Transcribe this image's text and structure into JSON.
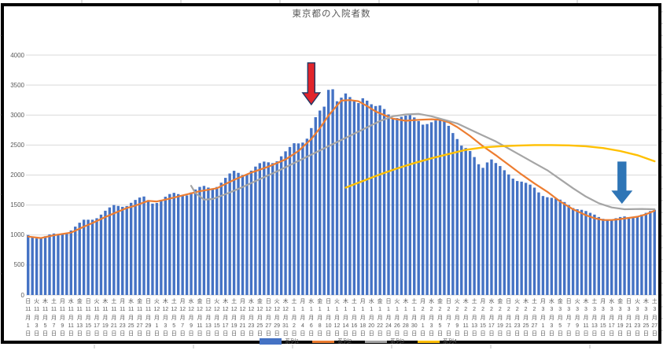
{
  "title": "東京都の入院者数",
  "legend": {
    "items": [
      {
        "label": "系列1",
        "color": "#4472C4",
        "swatch": "bar"
      },
      {
        "label": "系列2",
        "color": "#ED7D31",
        "swatch": "line"
      },
      {
        "label": "系列3",
        "color": "#A5A5A5",
        "swatch": "line"
      },
      {
        "label": "系列4",
        "color": "#FFC000",
        "swatch": "line"
      }
    ]
  },
  "colors": {
    "bar": "#4472C4",
    "line2": "#ED7D31",
    "line3": "#A5A5A5",
    "line4": "#FFC000",
    "gridline": "#D9D9D9",
    "axis_text": "#595959",
    "chart_border": "#000000",
    "red_arrow_fill": "#E1242B",
    "red_arrow_stroke": "#1F3864",
    "blue_arrow_fill": "#2E75B6"
  },
  "chart_data": {
    "type": "bar",
    "title": "東京都の入院者数",
    "ylim": [
      0,
      4000
    ],
    "y_ticks": [
      "0",
      "500",
      "1000",
      "1500",
      "2000",
      "2500",
      "3000",
      "3500",
      "4000"
    ],
    "month_suffix": "月",
    "day_suffix": "日",
    "x_tick_labels": [
      [
        "日",
        "11",
        "1"
      ],
      [
        "火",
        "11",
        "3"
      ],
      [
        "木",
        "11",
        "5"
      ],
      [
        "土",
        "11",
        "7"
      ],
      [
        "月",
        "11",
        "9"
      ],
      [
        "水",
        "11",
        "11"
      ],
      [
        "金",
        "11",
        "13"
      ],
      [
        "日",
        "11",
        "15"
      ],
      [
        "火",
        "11",
        "17"
      ],
      [
        "木",
        "11",
        "19"
      ],
      [
        "土",
        "11",
        "21"
      ],
      [
        "月",
        "11",
        "23"
      ],
      [
        "水",
        "11",
        "25"
      ],
      [
        "金",
        "11",
        "27"
      ],
      [
        "日",
        "11",
        "29"
      ],
      [
        "火",
        "12",
        "1"
      ],
      [
        "木",
        "12",
        "3"
      ],
      [
        "土",
        "12",
        "5"
      ],
      [
        "月",
        "12",
        "7"
      ],
      [
        "水",
        "12",
        "9"
      ],
      [
        "金",
        "12",
        "11"
      ],
      [
        "日",
        "12",
        "13"
      ],
      [
        "火",
        "12",
        "15"
      ],
      [
        "木",
        "12",
        "17"
      ],
      [
        "土",
        "12",
        "19"
      ],
      [
        "月",
        "12",
        "21"
      ],
      [
        "水",
        "12",
        "23"
      ],
      [
        "金",
        "12",
        "25"
      ],
      [
        "日",
        "12",
        "27"
      ],
      [
        "火",
        "12",
        "29"
      ],
      [
        "木",
        "12",
        "31"
      ],
      [
        "土",
        "1",
        "2"
      ],
      [
        "月",
        "1",
        "4"
      ],
      [
        "水",
        "1",
        "6"
      ],
      [
        "金",
        "1",
        "8"
      ],
      [
        "日",
        "1",
        "10"
      ],
      [
        "火",
        "1",
        "12"
      ],
      [
        "木",
        "1",
        "14"
      ],
      [
        "土",
        "1",
        "16"
      ],
      [
        "月",
        "1",
        "18"
      ],
      [
        "水",
        "1",
        "20"
      ],
      [
        "金",
        "1",
        "22"
      ],
      [
        "日",
        "1",
        "24"
      ],
      [
        "火",
        "1",
        "26"
      ],
      [
        "木",
        "1",
        "28"
      ],
      [
        "土",
        "1",
        "30"
      ],
      [
        "月",
        "2",
        "1"
      ],
      [
        "水",
        "2",
        "3"
      ],
      [
        "金",
        "2",
        "5"
      ],
      [
        "日",
        "2",
        "7"
      ],
      [
        "火",
        "2",
        "9"
      ],
      [
        "木",
        "2",
        "11"
      ],
      [
        "土",
        "2",
        "13"
      ],
      [
        "月",
        "2",
        "15"
      ],
      [
        "水",
        "2",
        "17"
      ],
      [
        "金",
        "2",
        "19"
      ],
      [
        "日",
        "2",
        "21"
      ],
      [
        "火",
        "2",
        "23"
      ],
      [
        "木",
        "2",
        "25"
      ],
      [
        "土",
        "2",
        "27"
      ],
      [
        "月",
        "3",
        "1"
      ],
      [
        "水",
        "3",
        "3"
      ],
      [
        "金",
        "3",
        "5"
      ],
      [
        "日",
        "3",
        "7"
      ],
      [
        "火",
        "3",
        "9"
      ],
      [
        "木",
        "3",
        "11"
      ],
      [
        "土",
        "3",
        "13"
      ],
      [
        "月",
        "3",
        "15"
      ],
      [
        "水",
        "3",
        "17"
      ],
      [
        "金",
        "3",
        "19"
      ],
      [
        "日",
        "3",
        "21"
      ],
      [
        "火",
        "3",
        "23"
      ],
      [
        "木",
        "3",
        "25"
      ],
      [
        "土",
        "3",
        "27"
      ]
    ],
    "bar_series": {
      "name": "系列1",
      "color": "#4472C4",
      "values": [
        1000,
        963,
        943,
        946,
        980,
        1010,
        1025,
        1015,
        1010,
        1030,
        1075,
        1140,
        1205,
        1255,
        1255,
        1255,
        1280,
        1340,
        1405,
        1460,
        1500,
        1485,
        1470,
        1483,
        1537,
        1585,
        1625,
        1642,
        1582,
        1523,
        1534,
        1586,
        1638,
        1683,
        1703,
        1682,
        1654,
        1660,
        1709,
        1759,
        1802,
        1819,
        1791,
        1778,
        1801,
        1872,
        1953,
        2026,
        2071,
        2036,
        2001,
        2007,
        2073,
        2141,
        2198,
        2224,
        2212,
        2199,
        2229,
        2312,
        2395,
        2468,
        2530,
        2527,
        2541,
        2606,
        2783,
        2965,
        3075,
        3140,
        3420,
        3430,
        3230,
        3290,
        3360,
        3300,
        3230,
        3200,
        3280,
        3240,
        3180,
        3150,
        3160,
        3100,
        3010,
        2940,
        2950,
        2970,
        2990,
        3000,
        2960,
        2900,
        2840,
        2850,
        2880,
        2910,
        2930,
        2900,
        2820,
        2700,
        2600,
        2490,
        2450,
        2400,
        2300,
        2180,
        2120,
        2210,
        2260,
        2200,
        2150,
        2080,
        2010,
        1940,
        1900,
        1890,
        1870,
        1840,
        1790,
        1710,
        1650,
        1630,
        1620,
        1610,
        1590,
        1550,
        1500,
        1450,
        1430,
        1420,
        1400,
        1370,
        1340,
        1300,
        1270,
        1255,
        1260,
        1280,
        1300,
        1310,
        1295,
        1285,
        1300,
        1340,
        1370,
        1400,
        1420
      ]
    },
    "line_series": [
      {
        "name": "系列2",
        "color": "#ED7D31",
        "width": 2.2,
        "points": [
          [
            0,
            975
          ],
          [
            3,
            950
          ],
          [
            6,
            995
          ],
          [
            10,
            1040
          ],
          [
            13,
            1140
          ],
          [
            15,
            1200
          ],
          [
            18,
            1300
          ],
          [
            20,
            1360
          ],
          [
            23,
            1450
          ],
          [
            25,
            1490
          ],
          [
            28,
            1570
          ],
          [
            30,
            1560
          ],
          [
            32,
            1590
          ],
          [
            36,
            1660
          ],
          [
            40,
            1730
          ],
          [
            44,
            1780
          ],
          [
            46,
            1850
          ],
          [
            48,
            1920
          ],
          [
            52,
            2040
          ],
          [
            56,
            2140
          ],
          [
            60,
            2260
          ],
          [
            63,
            2400
          ],
          [
            66,
            2600
          ],
          [
            68,
            2780
          ],
          [
            70,
            2990
          ],
          [
            72,
            3160
          ],
          [
            73,
            3240
          ],
          [
            75,
            3250
          ],
          [
            77,
            3230
          ],
          [
            79,
            3150
          ],
          [
            81,
            3060
          ],
          [
            83,
            3000
          ],
          [
            85,
            2940
          ],
          [
            88,
            2905
          ],
          [
            91,
            2920
          ],
          [
            94,
            2930
          ],
          [
            96,
            2920
          ],
          [
            98,
            2880
          ],
          [
            100,
            2800
          ],
          [
            103,
            2650
          ],
          [
            106,
            2480
          ],
          [
            109,
            2330
          ],
          [
            112,
            2170
          ],
          [
            115,
            2010
          ],
          [
            118,
            1860
          ],
          [
            121,
            1720
          ],
          [
            124,
            1560
          ],
          [
            127,
            1430
          ],
          [
            130,
            1330
          ],
          [
            132,
            1280
          ],
          [
            134,
            1250
          ],
          [
            136,
            1250
          ],
          [
            138,
            1265
          ],
          [
            140,
            1285
          ],
          [
            142,
            1305
          ],
          [
            144,
            1345
          ],
          [
            146,
            1405
          ]
        ]
      },
      {
        "name": "系列3",
        "color": "#A5A5A5",
        "width": 2.2,
        "points": [
          [
            38,
            1820
          ],
          [
            39,
            1700
          ],
          [
            41,
            1590
          ],
          [
            43,
            1600
          ],
          [
            46,
            1680
          ],
          [
            50,
            1800
          ],
          [
            54,
            1930
          ],
          [
            58,
            2060
          ],
          [
            62,
            2200
          ],
          [
            66,
            2340
          ],
          [
            70,
            2480
          ],
          [
            74,
            2620
          ],
          [
            78,
            2760
          ],
          [
            82,
            2900
          ],
          [
            85,
            2980
          ],
          [
            88,
            3010
          ],
          [
            91,
            3020
          ],
          [
            94,
            2980
          ],
          [
            97,
            2920
          ],
          [
            100,
            2860
          ],
          [
            103,
            2760
          ],
          [
            106,
            2660
          ],
          [
            109,
            2560
          ],
          [
            112,
            2440
          ],
          [
            115,
            2320
          ],
          [
            118,
            2200
          ],
          [
            121,
            2080
          ],
          [
            124,
            1930
          ],
          [
            127,
            1780
          ],
          [
            130,
            1640
          ],
          [
            133,
            1530
          ],
          [
            136,
            1460
          ],
          [
            139,
            1430
          ],
          [
            143,
            1435
          ],
          [
            146,
            1430
          ]
        ]
      },
      {
        "name": "系列4",
        "color": "#FFC000",
        "width": 2.4,
        "points": [
          [
            74,
            1790
          ],
          [
            78,
            1900
          ],
          [
            82,
            2010
          ],
          [
            86,
            2110
          ],
          [
            90,
            2200
          ],
          [
            94,
            2280
          ],
          [
            98,
            2350
          ],
          [
            102,
            2420
          ],
          [
            106,
            2460
          ],
          [
            110,
            2480
          ],
          [
            114,
            2490
          ],
          [
            118,
            2500
          ],
          [
            122,
            2500
          ],
          [
            126,
            2495
          ],
          [
            130,
            2480
          ],
          [
            134,
            2450
          ],
          [
            138,
            2400
          ],
          [
            142,
            2330
          ],
          [
            146,
            2230
          ]
        ]
      }
    ],
    "annotations": [
      {
        "name": "red-down-arrow",
        "fill": "#E1242B",
        "stroke": "#1F3864",
        "day": 66,
        "value_top": 3870,
        "value_tip": 3175,
        "shaft_w": 9,
        "head_w": 22,
        "head_h": 15
      },
      {
        "name": "blue-down-arrow",
        "fill": "#2E75B6",
        "stroke": "#2E75B6",
        "day": 138.4,
        "value_top": 2215,
        "value_tip": 1535,
        "shaft_w": 10,
        "head_w": 24,
        "head_h": 15
      }
    ]
  }
}
